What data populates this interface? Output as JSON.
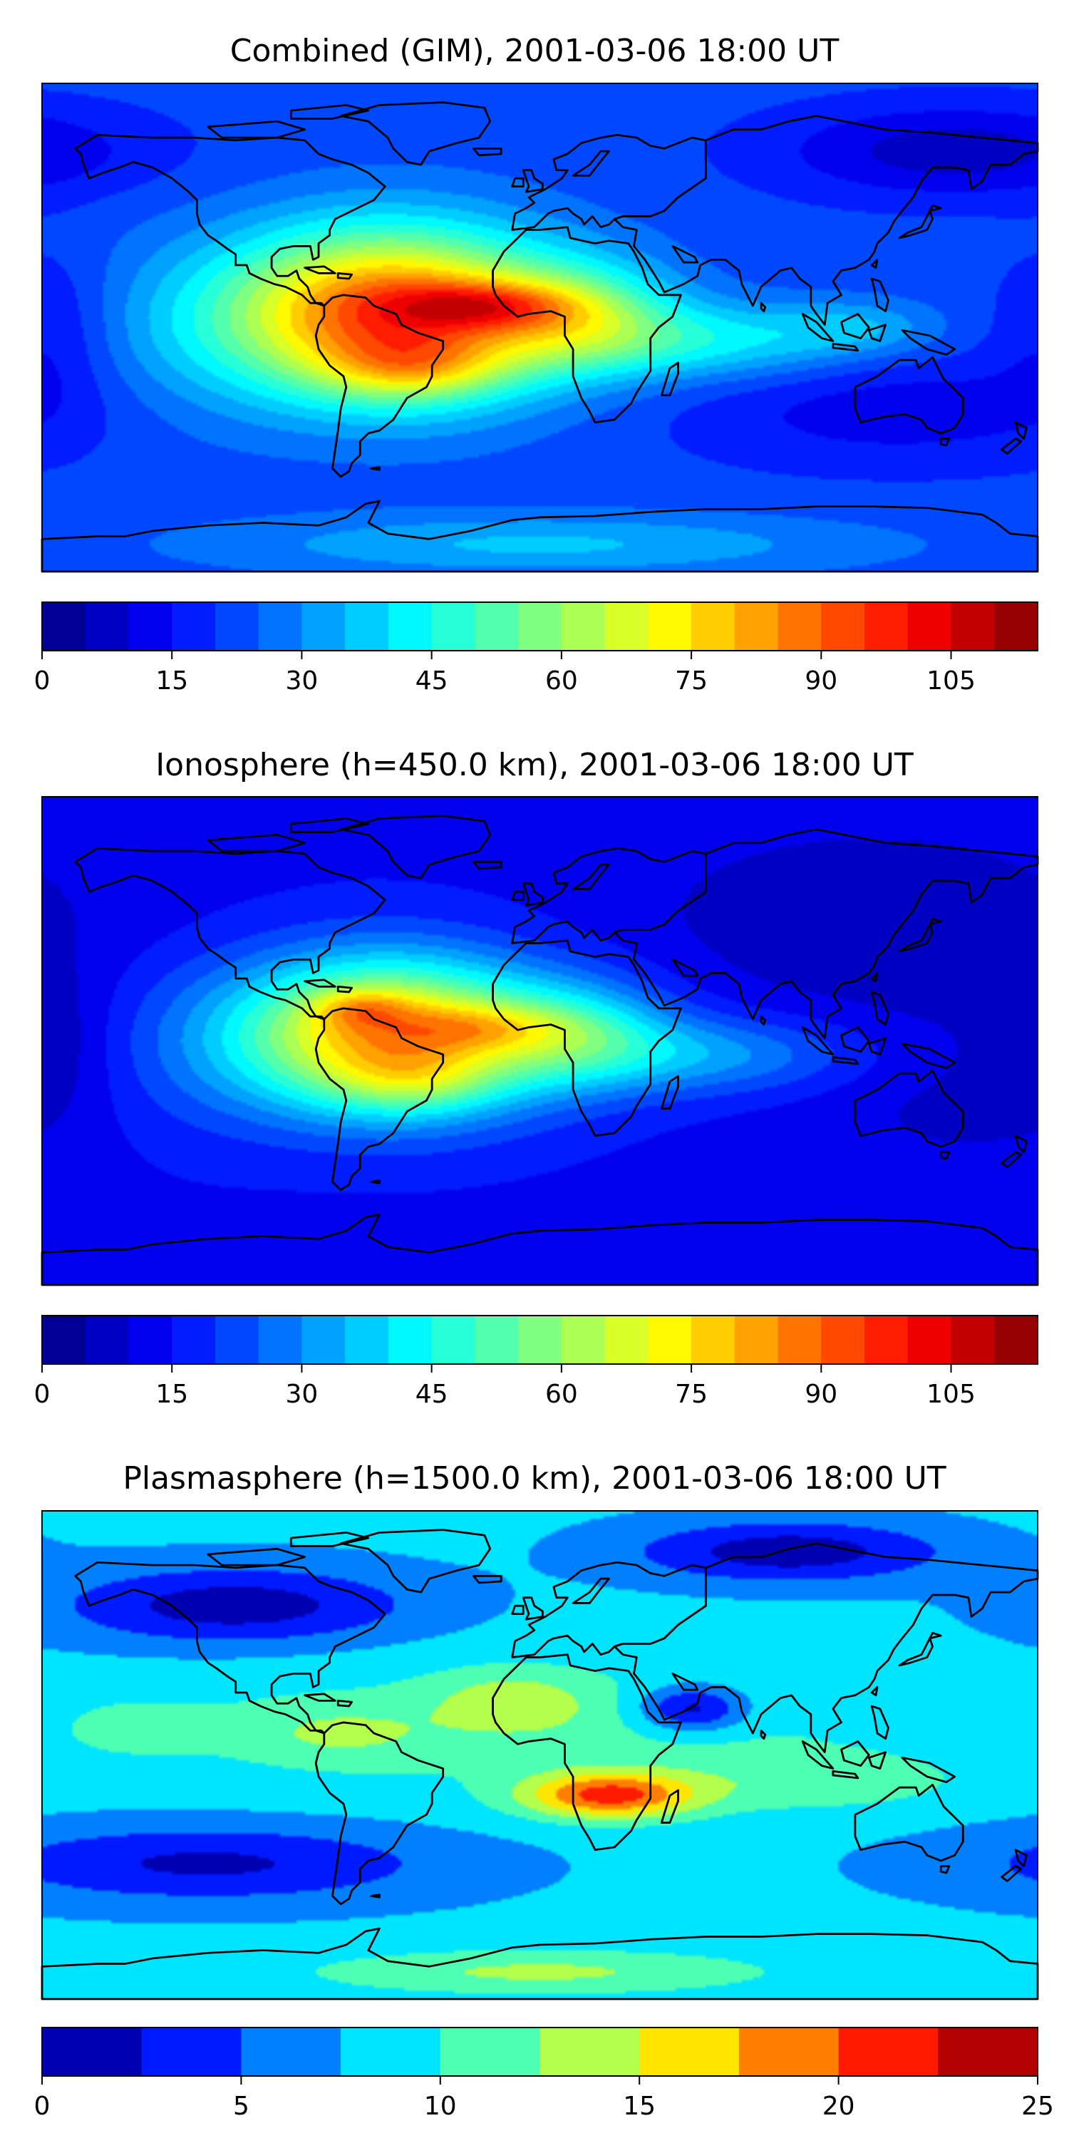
{
  "chart_data": [
    {
      "type": "heatmap",
      "title": "Combined (GIM), 2001-03-06 18:00 UT",
      "colormap": "jet",
      "colorbar": {
        "min": 0,
        "max": 115,
        "step": 5,
        "ticks": [
          0,
          15,
          30,
          45,
          60,
          75,
          90,
          105
        ],
        "tick_labels": [
          "0",
          "15",
          "30",
          "45",
          "60",
          "75",
          "90",
          "105"
        ]
      },
      "background": 22,
      "blobs": [
        {
          "lon": -55,
          "lat": 5,
          "slon": 42,
          "slat": 22,
          "amp": 72
        },
        {
          "lon": -45,
          "lat": -15,
          "slon": 22,
          "slat": 8,
          "amp": 18
        },
        {
          "lon": -20,
          "lat": 8,
          "slon": 22,
          "slat": 6,
          "amp": 25
        },
        {
          "lon": 15,
          "lat": 5,
          "slon": 24,
          "slat": 14,
          "amp": 25
        },
        {
          "lon": 60,
          "lat": -5,
          "slon": 40,
          "slat": 10,
          "amp": 20
        },
        {
          "lon": 115,
          "lat": 0,
          "slon": 20,
          "slat": 7,
          "amp": 10
        },
        {
          "lon": 150,
          "lat": 65,
          "slon": 45,
          "slat": 12,
          "amp": -15
        },
        {
          "lon": 130,
          "lat": -30,
          "slon": 55,
          "slat": 15,
          "amp": -10
        },
        {
          "lon": -130,
          "lat": -5,
          "slon": 30,
          "slat": 25,
          "amp": 6
        },
        {
          "lon": -175,
          "lat": 0,
          "slon": 15,
          "slat": 20,
          "amp": -8
        },
        {
          "lon": 0,
          "lat": -80,
          "slon": 80,
          "slat": 8,
          "amp": 14
        }
      ]
    },
    {
      "type": "heatmap",
      "title": "Ionosphere  (h=450.0 km), 2001-03-06 18:00 UT",
      "colormap": "jet",
      "colorbar": {
        "min": 0,
        "max": 115,
        "step": 5,
        "ticks": [
          0,
          15,
          30,
          45,
          60,
          75,
          90,
          105
        ],
        "tick_labels": [
          "0",
          "15",
          "30",
          "45",
          "60",
          "75",
          "90",
          "105"
        ]
      },
      "background": 14,
      "blobs": [
        {
          "lon": -55,
          "lat": 2,
          "slon": 40,
          "slat": 20,
          "amp": 68
        },
        {
          "lon": -45,
          "lat": -15,
          "slon": 20,
          "slat": 8,
          "amp": 12
        },
        {
          "lon": -65,
          "lat": 12,
          "slon": 12,
          "slat": 5,
          "amp": 15
        },
        {
          "lon": -20,
          "lat": 5,
          "slon": 22,
          "slat": 6,
          "amp": 15
        },
        {
          "lon": 15,
          "lat": 3,
          "slon": 24,
          "slat": 14,
          "amp": 22
        },
        {
          "lon": 60,
          "lat": -5,
          "slon": 40,
          "slat": 10,
          "amp": 18
        },
        {
          "lon": 120,
          "lat": 45,
          "slon": 60,
          "slat": 25,
          "amp": -8
        },
        {
          "lon": 150,
          "lat": -20,
          "slon": 40,
          "slat": 25,
          "amp": -5
        },
        {
          "lon": -130,
          "lat": -5,
          "slon": 30,
          "slat": 25,
          "amp": 5
        },
        {
          "lon": -175,
          "lat": 0,
          "slon": 15,
          "slat": 20,
          "amp": -6
        }
      ]
    },
    {
      "type": "heatmap",
      "title": "Plasmasphere (h=1500.0 km), 2001-03-06 18:00 UT",
      "colormap": "jet",
      "colorbar": {
        "min": 0,
        "max": 25,
        "step": 2.5,
        "ticks": [
          0,
          5,
          10,
          15,
          20,
          25
        ],
        "tick_labels": [
          "0",
          "5",
          "10",
          "15",
          "20",
          "25"
        ]
      },
      "background": 8,
      "blobs": [
        {
          "lon": 0,
          "lat": 10,
          "slon": 90,
          "slat": 18,
          "amp": 3
        },
        {
          "lon": 25,
          "lat": -15,
          "slon": 22,
          "slat": 6,
          "amp": 12
        },
        {
          "lon": -10,
          "lat": 20,
          "slon": 20,
          "slat": 8,
          "amp": 4
        },
        {
          "lon": 55,
          "lat": 17,
          "slon": 14,
          "slat": 6,
          "amp": -8
        },
        {
          "lon": -110,
          "lat": 55,
          "slon": 45,
          "slat": 10,
          "amp": -7
        },
        {
          "lon": 90,
          "lat": 75,
          "slon": 40,
          "slat": 8,
          "amp": -7
        },
        {
          "lon": -120,
          "lat": -40,
          "slon": 60,
          "slat": 10,
          "amp": -6
        },
        {
          "lon": 0,
          "lat": -80,
          "slon": 60,
          "slat": 6,
          "amp": 5
        },
        {
          "lon": 100,
          "lat": -10,
          "slon": 40,
          "slat": 8,
          "amp": 3
        },
        {
          "lon": -150,
          "lat": 10,
          "slon": 25,
          "slat": 10,
          "amp": 2
        },
        {
          "lon": -75,
          "lat": 8,
          "slon": 25,
          "slat": 8,
          "amp": 3
        }
      ]
    }
  ],
  "colors": {
    "coastline": "#000000",
    "colormap_stops": [
      "#00008f",
      "#0000ff",
      "#00ffff",
      "#ffff00",
      "#ff0000",
      "#800000"
    ]
  }
}
